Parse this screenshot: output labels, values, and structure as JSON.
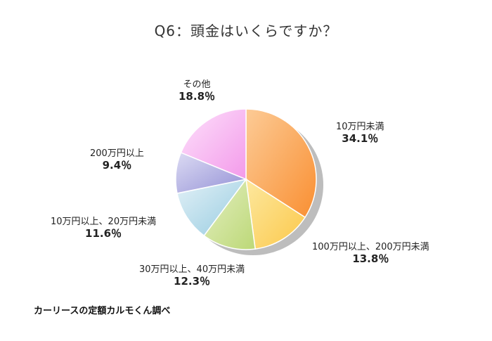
{
  "chart_data": {
    "type": "pie",
    "title": "Q6：頭金はいくらですか？",
    "slices": [
      {
        "label": "10万円未満",
        "value": 34.1,
        "pct_text": "34.1％",
        "color": "#f9a04a"
      },
      {
        "label": "100万円以上、200万円未満",
        "value": 13.8,
        "pct_text": "13.8％",
        "color": "#fbd466"
      },
      {
        "label": "30万円以上、40万円未満",
        "value": 12.3,
        "pct_text": "12.3％",
        "color": "#c9de8c"
      },
      {
        "label": "10万円以上、20万円未満",
        "value": 11.6,
        "pct_text": "11.6％",
        "color": "#a9d7e6"
      },
      {
        "label": "200万円以上",
        "value": 9.4,
        "pct_text": "9.4％",
        "color": "#a8a6de"
      },
      {
        "label": "その他",
        "value": 18.8,
        "pct_text": "18.8％",
        "color": "#f6a9ee"
      }
    ],
    "start": "12 o'clock",
    "direction": "clockwise"
  },
  "source_note": "カーリースの定額カルモくん調べ"
}
